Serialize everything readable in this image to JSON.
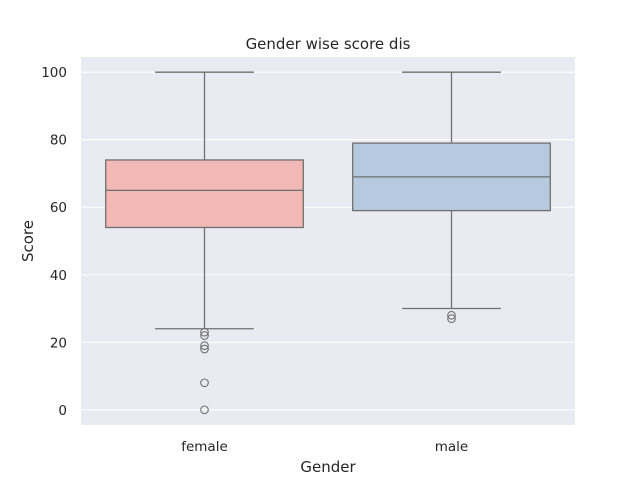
{
  "chart_data": {
    "type": "box",
    "title": "Gender wise score dis",
    "xlabel": "Gender",
    "ylabel": "Score",
    "ylim": [
      -4.5,
      104.5
    ],
    "yticks": [
      0,
      20,
      40,
      60,
      80,
      100
    ],
    "grid": true,
    "categories": [
      "female",
      "male"
    ],
    "boxes": [
      {
        "category": "female",
        "color": "#F1B8B6",
        "whisker_low": 24,
        "q1": 54,
        "median": 65,
        "q3": 74,
        "whisker_high": 100,
        "outliers": [
          23,
          22,
          19,
          18,
          8,
          0
        ]
      },
      {
        "category": "male",
        "color": "#B5CADE",
        "whisker_low": 30,
        "q1": 59,
        "median": 69,
        "q3": 79,
        "whisker_high": 100,
        "outliers": [
          28,
          27
        ]
      }
    ],
    "colors": {
      "background": "#EAEAF2",
      "grid": "#FFFFFF",
      "line": "#707070"
    }
  }
}
